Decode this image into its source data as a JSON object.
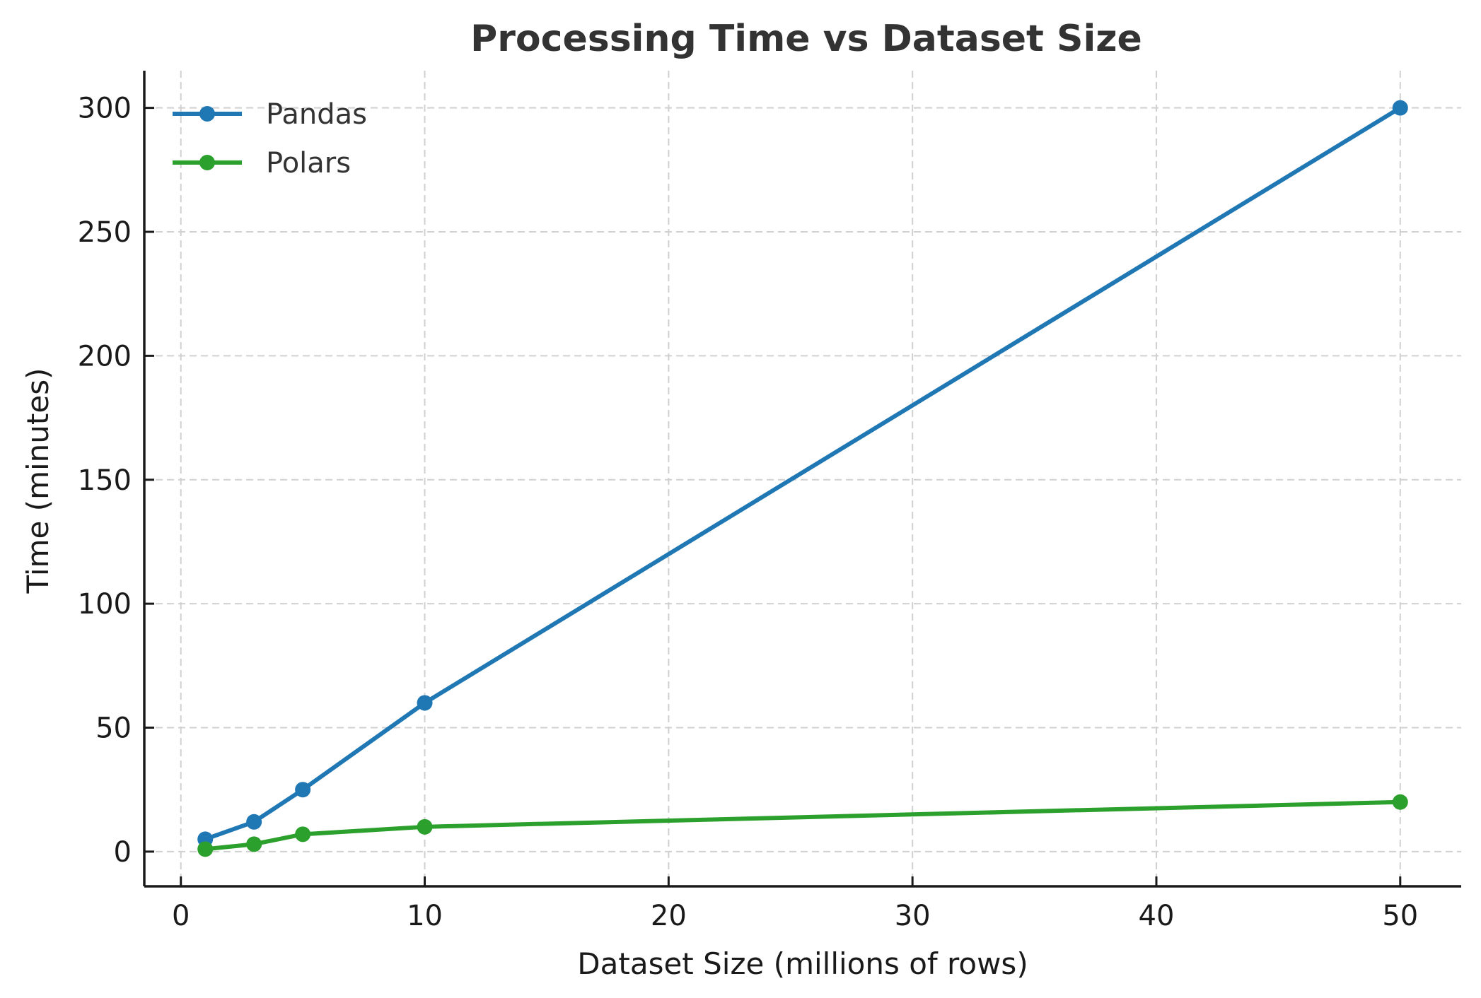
{
  "chart_data": {
    "type": "line",
    "title": "Processing Time vs Dataset Size",
    "xlabel": "Dataset Size (millions of rows)",
    "ylabel": "Time (minutes)",
    "x": [
      1,
      3,
      5,
      10,
      50
    ],
    "series": [
      {
        "name": "Pandas",
        "color": "#1f77b4",
        "values": [
          5,
          12,
          25,
          60,
          300
        ]
      },
      {
        "name": "Polars",
        "color": "#2ca02c",
        "values": [
          1,
          3,
          7,
          10,
          20
        ]
      }
    ],
    "xlim": [
      -1.5,
      52.5
    ],
    "ylim": [
      -14,
      315
    ],
    "xticks": [
      0,
      10,
      20,
      30,
      40,
      50
    ],
    "yticks": [
      0,
      50,
      100,
      150,
      200,
      250,
      300
    ],
    "grid": true,
    "grid_style": "dashed",
    "legend_position": "upper left",
    "markers": "circle"
  }
}
